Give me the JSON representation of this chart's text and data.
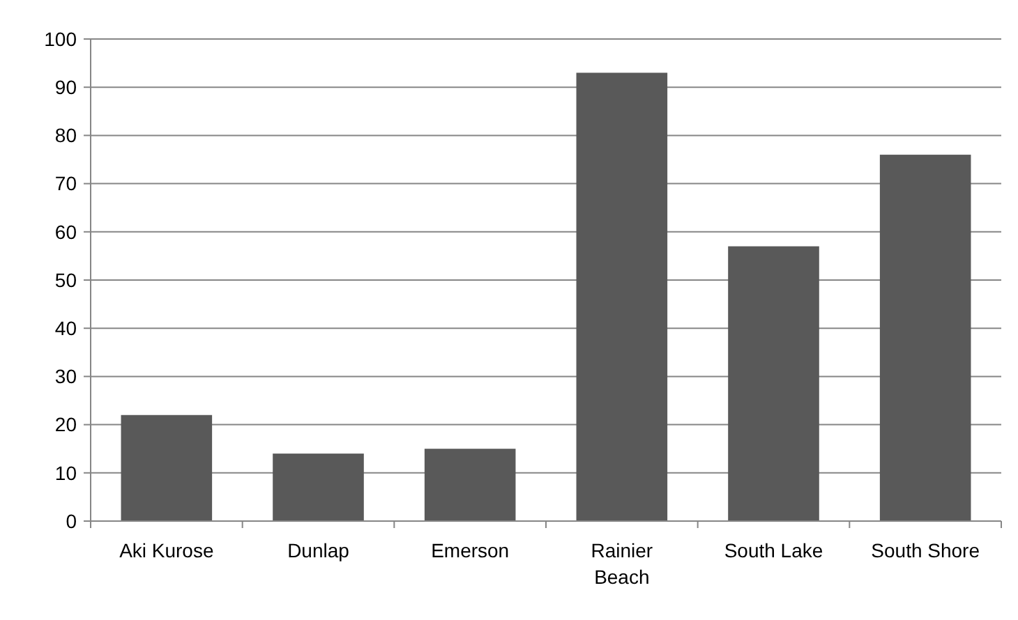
{
  "chart_data": {
    "type": "bar",
    "categories": [
      "Aki Kurose",
      "Dunlap",
      "Emerson",
      "Rainier Beach",
      "South Lake",
      "South Shore"
    ],
    "values": [
      22,
      14,
      15,
      93,
      57,
      76
    ],
    "color": "#595959",
    "ylim": [
      0,
      100
    ],
    "yticks": [
      0,
      10,
      20,
      30,
      40,
      50,
      60,
      70,
      80,
      90,
      100
    ],
    "grid": "y"
  }
}
